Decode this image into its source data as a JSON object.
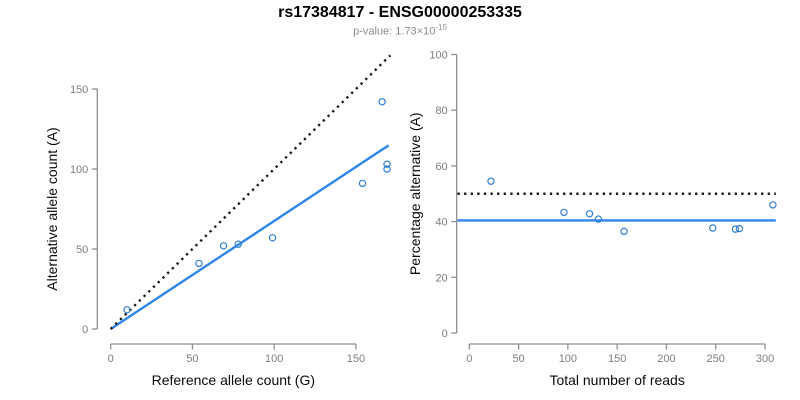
{
  "header": {
    "title": "rs17384817 - ENSG00000253335",
    "subtitle_prefix": "p-value: 1.73×10",
    "subtitle_exponent": "-15"
  },
  "colors": {
    "title": "#000000",
    "subtitle": "#8c8c8c",
    "solid_line": "#2e86ed",
    "point": "#2f7fd0",
    "dotted_line": "#1a1a1a",
    "axis": "#8f8f8f",
    "tick_label": "#7d7d7d",
    "axis_title": "#0a0a0a"
  },
  "chart_data": [
    {
      "type": "scatter",
      "name": "allele-counts-plot",
      "xlabel": "Reference allele count (G)",
      "ylabel": "Alternative allele count (A)",
      "xticks": [
        0,
        50,
        100,
        150
      ],
      "yticks": [
        0,
        50,
        100,
        150
      ],
      "xlim": [
        0,
        175
      ],
      "ylim": [
        0,
        173
      ],
      "grid": false,
      "legend": "none",
      "points": [
        [
          10,
          12
        ],
        [
          54,
          41
        ],
        [
          69,
          52
        ],
        [
          78,
          53
        ],
        [
          99,
          57
        ],
        [
          154,
          91
        ],
        [
          169,
          103
        ],
        [
          169,
          100
        ],
        [
          166,
          142
        ]
      ],
      "lines": [
        {
          "name": "regression-line",
          "style": "solid",
          "color_key": "solid_line",
          "x1": 0,
          "y1": 0,
          "x2": 170,
          "y2": 114.8
        },
        {
          "name": "identity-line",
          "style": "dotted",
          "color_key": "dotted_line",
          "x1": 0,
          "y1": 0,
          "x2": 171,
          "y2": 171
        }
      ]
    },
    {
      "type": "scatter",
      "name": "percentage-alternative-plot",
      "xlabel": "Total number of reads",
      "ylabel": "Percentage alternative (A)",
      "xticks": [
        0,
        50,
        100,
        150,
        200,
        250,
        300
      ],
      "yticks": [
        0,
        20,
        40,
        60,
        80,
        100
      ],
      "xlim": [
        -12,
        311
      ],
      "ylim": [
        0,
        100
      ],
      "grid": false,
      "legend": "none",
      "points": [
        [
          22,
          54.5
        ],
        [
          96,
          43.3
        ],
        [
          122,
          42.8
        ],
        [
          131,
          40.9
        ],
        [
          157,
          36.5
        ],
        [
          247,
          37.7
        ],
        [
          270,
          37.3
        ],
        [
          274,
          37.5
        ],
        [
          308,
          46
        ]
      ],
      "lines": [
        {
          "name": "mean-percentage-line",
          "style": "solid",
          "color_key": "solid_line",
          "x1": -12,
          "y1": 40.4,
          "x2": 311,
          "y2": 40.4
        },
        {
          "name": "expected-percentage-line",
          "style": "dotted",
          "color_key": "dotted_line",
          "x1": -12,
          "y1": 50,
          "x2": 311,
          "y2": 50
        }
      ]
    }
  ]
}
